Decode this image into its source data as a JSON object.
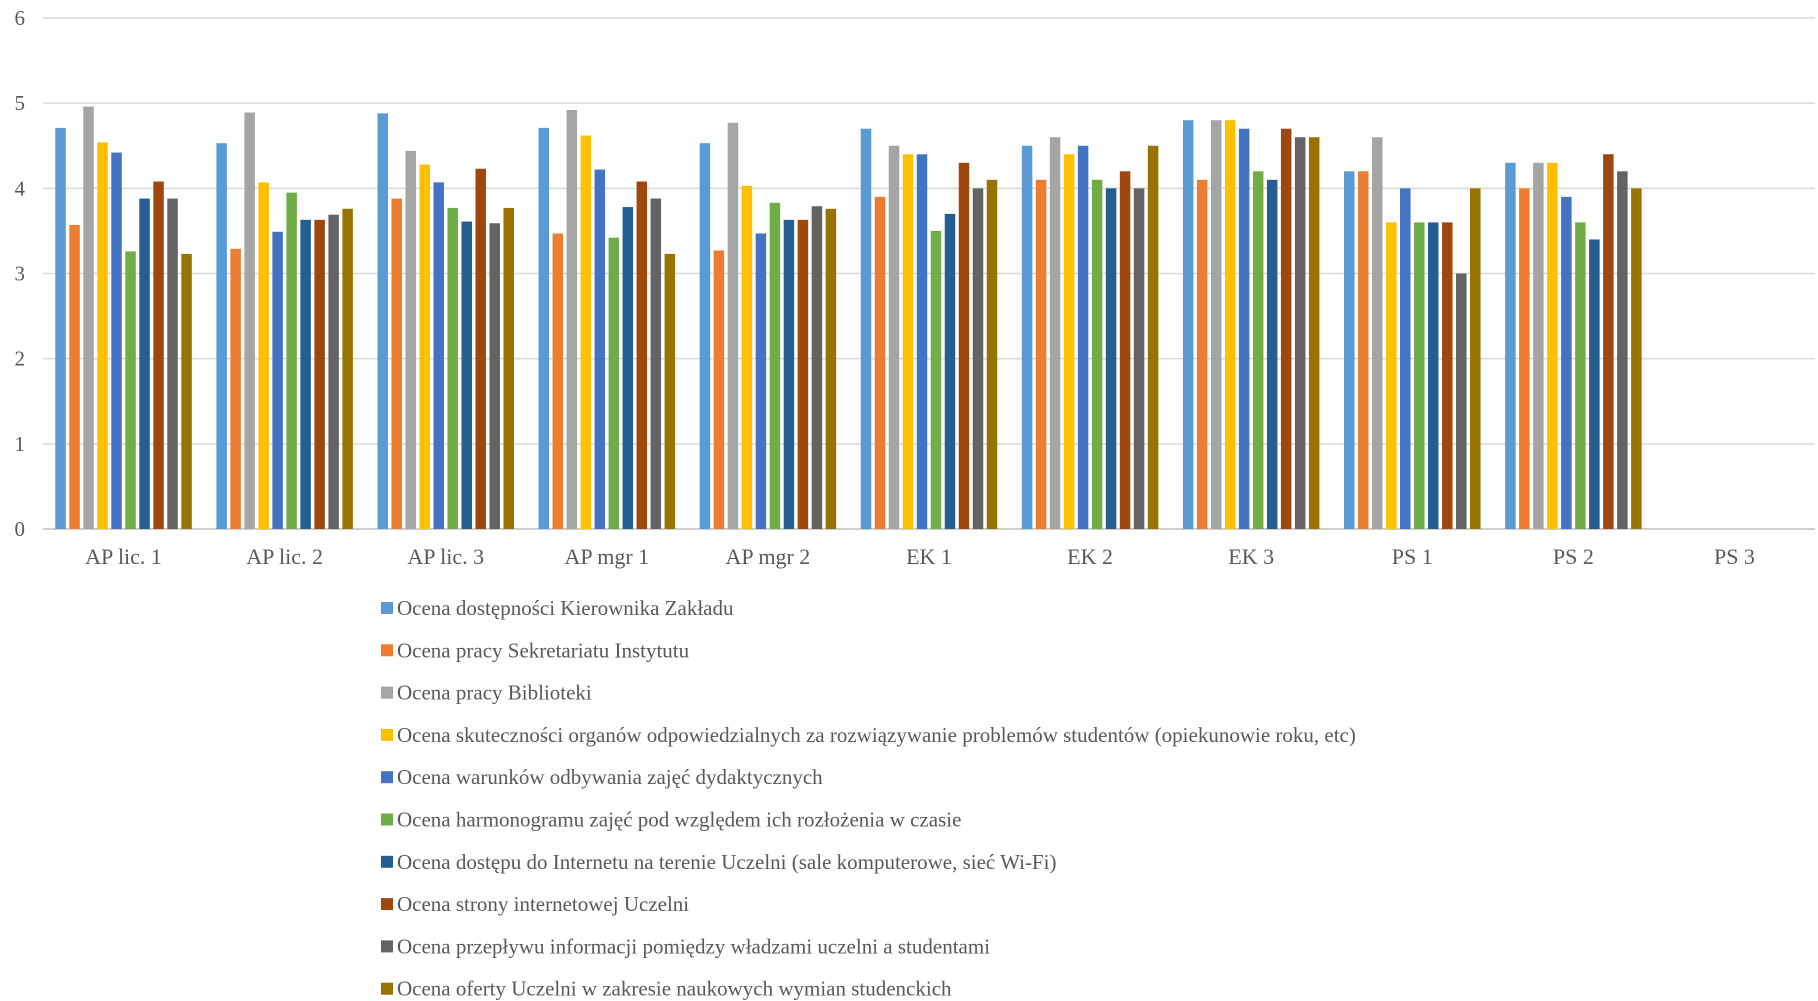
{
  "chart_data": {
    "type": "bar",
    "title": "",
    "xlabel": "",
    "ylabel": "",
    "ylim": [
      0,
      6
    ],
    "yticks": [
      0,
      1,
      2,
      3,
      4,
      5,
      6
    ],
    "grid": true,
    "legend_position": "bottom",
    "categories": [
      "AP lic. 1",
      "AP lic. 2",
      "AP lic. 3",
      "AP mgr 1",
      "AP mgr 2",
      "EK 1",
      "EK 2",
      "EK 3",
      "PS 1",
      "PS 2",
      "PS 3"
    ],
    "series": [
      {
        "name": "Ocena dostępności Kierownika Zakładu",
        "color": "#5B9BD5",
        "values": [
          4.71,
          4.53,
          4.88,
          4.71,
          4.53,
          4.7,
          4.5,
          4.8,
          4.2,
          4.3,
          null
        ]
      },
      {
        "name": "Ocena pracy Sekretariatu Instytutu",
        "color": "#ED7D31",
        "values": [
          3.57,
          3.29,
          3.88,
          3.47,
          3.27,
          3.9,
          4.1,
          4.1,
          4.2,
          4.0,
          null
        ]
      },
      {
        "name": "Ocena pracy Biblioteki",
        "color": "#A5A5A5",
        "values": [
          4.96,
          4.89,
          4.44,
          4.92,
          4.77,
          4.5,
          4.6,
          4.8,
          4.6,
          4.3,
          null
        ]
      },
      {
        "name": "Ocena skuteczności organów odpowiedzialnych za rozwiązywanie problemów studentów (opiekunowie roku, etc)",
        "color": "#FFC000",
        "values": [
          4.54,
          4.07,
          4.28,
          4.62,
          4.03,
          4.4,
          4.4,
          4.8,
          3.6,
          4.3,
          null
        ]
      },
      {
        "name": "Ocena warunków odbywania zajęć dydaktycznych",
        "color": "#4472C4",
        "values": [
          4.42,
          3.49,
          4.07,
          4.22,
          3.47,
          4.4,
          4.5,
          4.7,
          4.0,
          3.9,
          null
        ]
      },
      {
        "name": "Ocena harmonogramu zajęć pod względem ich rozłożenia w czasie",
        "color": "#70AD47",
        "values": [
          3.26,
          3.95,
          3.77,
          3.42,
          3.83,
          3.5,
          4.1,
          4.2,
          3.6,
          3.6,
          null
        ]
      },
      {
        "name": "Ocena dostępu do Internetu na terenie Uczelni (sale komputerowe, sieć Wi-Fi)",
        "color": "#255E91",
        "values": [
          3.88,
          3.63,
          3.61,
          3.78,
          3.63,
          3.7,
          4.0,
          4.1,
          3.6,
          3.4,
          null
        ]
      },
      {
        "name": "Ocena strony internetowej Uczelni",
        "color": "#9E480E",
        "values": [
          4.08,
          3.63,
          4.23,
          4.08,
          3.63,
          4.3,
          4.2,
          4.7,
          3.6,
          4.4,
          null
        ]
      },
      {
        "name": "Ocena przepływu informacji pomiędzy władzami uczelni a studentami",
        "color": "#636363",
        "values": [
          3.88,
          3.69,
          3.59,
          3.88,
          3.79,
          4.0,
          4.0,
          4.6,
          3.0,
          4.2,
          null
        ]
      },
      {
        "name": "Ocena oferty Uczelni w zakresie naukowych wymian studenckich",
        "color": "#997300",
        "values": [
          3.23,
          3.76,
          3.77,
          3.23,
          3.76,
          4.1,
          4.5,
          4.6,
          4.0,
          4.0,
          null
        ]
      }
    ]
  }
}
